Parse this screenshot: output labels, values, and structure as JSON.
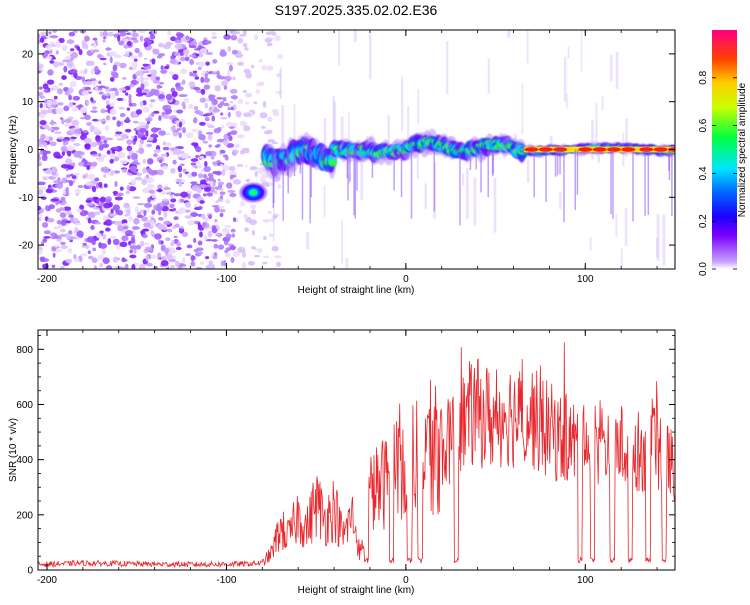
{
  "figure_title": "S197.2025.335.02.02.E36",
  "chart_data": [
    {
      "type": "heatmap",
      "title": "S197.2025.335.02.02.E36",
      "xlabel": "Height of straight line (km)",
      "ylabel": "Frequency (Hz)",
      "xlim": [
        -205,
        150
      ],
      "ylim": [
        -25,
        25
      ],
      "xticks": [
        -200,
        -100,
        0,
        100
      ],
      "yticks": [
        -20,
        -10,
        0,
        10,
        20
      ],
      "xtick_labels": [
        "-200",
        "-100",
        "0",
        "100"
      ],
      "ytick_labels": [
        "-20",
        "-10",
        "0",
        "10",
        "20"
      ],
      "colorbar": {
        "label": "Normalized spectral amplitude",
        "range": [
          0,
          1
        ],
        "ticks": [
          0.0,
          0.2,
          0.4,
          0.6,
          0.8
        ],
        "tick_labels": [
          "0.0",
          "0.2",
          "0.4",
          "0.6",
          "0.8"
        ],
        "colors": [
          "#ffffff",
          "#7a00ff",
          "#0000ff",
          "#00e5ff",
          "#00ff00",
          "#ffff00",
          "#ff8000",
          "#ff0000",
          "#ff0080"
        ]
      },
      "regions": [
        {
          "name": "noise",
          "x_range": [
            -205,
            -80
          ],
          "frequency_range": [
            -25,
            25
          ],
          "amplitude": "low (purple speckle)"
        },
        {
          "name": "signal-band",
          "x_range": [
            -78,
            150
          ],
          "center_frequency": 0,
          "amplitude": "rising to peak ~0.95 at x 70-150"
        },
        {
          "name": "blob",
          "x": -85,
          "frequency": -9,
          "amplitude": 0.45
        }
      ]
    },
    {
      "type": "line",
      "xlabel": "Height of straight line (km)",
      "ylabel": "SNR (10 * v/v)",
      "xlim": [
        -205,
        150
      ],
      "ylim": [
        0,
        870
      ],
      "xticks": [
        -200,
        -100,
        0,
        100
      ],
      "yticks": [
        0,
        200,
        400,
        600,
        800
      ],
      "xtick_labels": [
        "-200",
        "-100",
        "0",
        "100"
      ],
      "ytick_labels": [
        "0",
        "200",
        "400",
        "600",
        "800"
      ],
      "color": "#e8262b",
      "series": [
        {
          "name": "SNR",
          "x": [
            -205,
            -180,
            -150,
            -120,
            -90,
            -80,
            -75,
            -70,
            -65,
            -60,
            -55,
            -50,
            -45,
            -40,
            -35,
            -30,
            -25,
            -20,
            -15,
            -10,
            -5,
            0,
            5,
            10,
            15,
            20,
            25,
            30,
            35,
            40,
            45,
            50,
            55,
            60,
            65,
            70,
            75,
            80,
            85,
            90,
            95,
            100,
            105,
            110,
            115,
            120,
            125,
            130,
            135,
            140,
            145,
            150
          ],
          "y": [
            20,
            25,
            22,
            20,
            22,
            25,
            60,
            150,
            120,
            200,
            150,
            250,
            180,
            230,
            120,
            200,
            50,
            280,
            300,
            330,
            380,
            420,
            400,
            500,
            430,
            440,
            470,
            520,
            560,
            570,
            560,
            530,
            580,
            560,
            550,
            560,
            520,
            510,
            480,
            470,
            460,
            450,
            440,
            460,
            460,
            450,
            440,
            430,
            430,
            440,
            420,
            370
          ]
        }
      ],
      "dropouts_x": [
        -22,
        -8,
        2,
        8,
        28,
        97,
        104,
        115,
        125,
        135,
        144
      ]
    }
  ]
}
